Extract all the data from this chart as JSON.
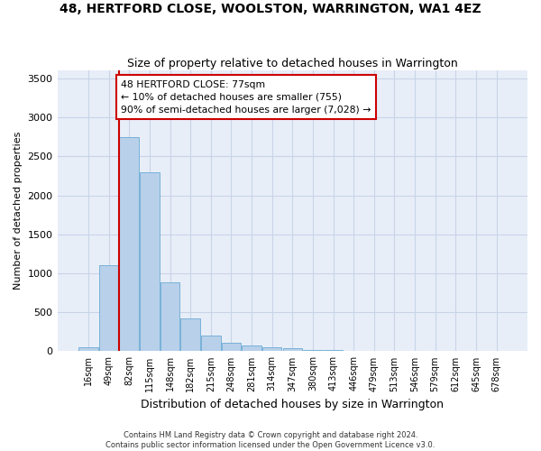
{
  "title": "48, HERTFORD CLOSE, WOOLSTON, WARRINGTON, WA1 4EZ",
  "subtitle": "Size of property relative to detached houses in Warrington",
  "xlabel": "Distribution of detached houses by size in Warrington",
  "ylabel": "Number of detached properties",
  "bar_labels": [
    "16sqm",
    "49sqm",
    "82sqm",
    "115sqm",
    "148sqm",
    "182sqm",
    "215sqm",
    "248sqm",
    "281sqm",
    "314sqm",
    "347sqm",
    "380sqm",
    "413sqm",
    "446sqm",
    "479sqm",
    "513sqm",
    "546sqm",
    "579sqm",
    "612sqm",
    "645sqm",
    "678sqm"
  ],
  "bar_values": [
    50,
    1100,
    2750,
    2300,
    880,
    420,
    200,
    110,
    80,
    55,
    35,
    20,
    15,
    10,
    8,
    5,
    3,
    2,
    1,
    1,
    0
  ],
  "bar_color": "#b8d0ea",
  "bar_edgecolor": "#6aaad4",
  "grid_color": "#c8d4e8",
  "background_color": "#e8eef8",
  "vline_color": "#cc0000",
  "annotation_text": "48 HERTFORD CLOSE: 77sqm\n← 10% of detached houses are smaller (755)\n90% of semi-detached houses are larger (7,028) →",
  "annotation_box_color": "#cc0000",
  "ylim": [
    0,
    3600
  ],
  "yticks": [
    0,
    500,
    1000,
    1500,
    2000,
    2500,
    3000,
    3500
  ],
  "footer_line1": "Contains HM Land Registry data © Crown copyright and database right 2024.",
  "footer_line2": "Contains public sector information licensed under the Open Government Licence v3.0."
}
